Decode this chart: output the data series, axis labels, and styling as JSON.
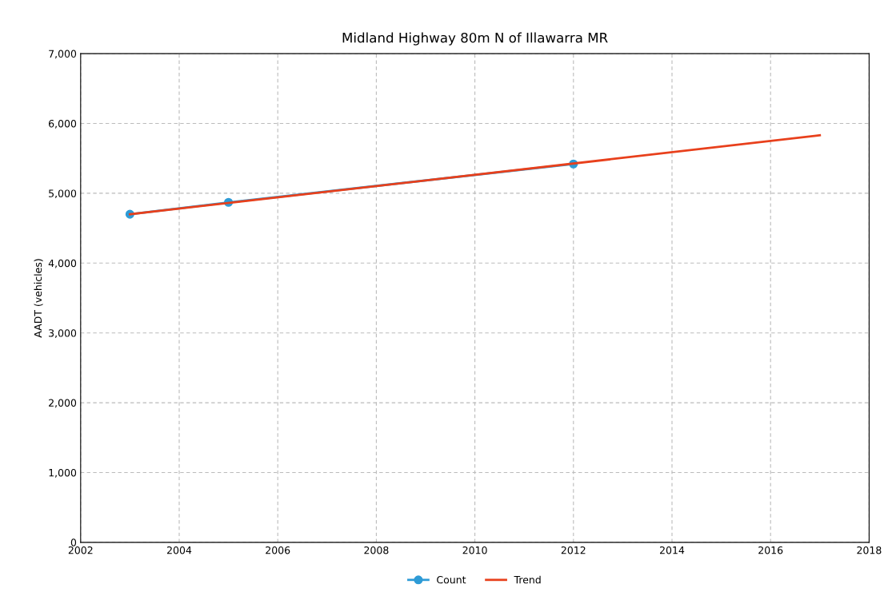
{
  "chart_data": {
    "type": "line",
    "title": "Midland Highway 80m N of Illawarra MR",
    "ylabel": "AADT (vehicles)",
    "series": [
      {
        "name": "Count",
        "color": "#2e9bd6",
        "x": [
          2003,
          2005,
          2012
        ],
        "values": [
          4700,
          4870,
          5420
        ],
        "marker": "circle"
      },
      {
        "name": "Trend",
        "color": "#e8401c",
        "x": [
          2003,
          2017
        ],
        "values": [
          4700,
          5830
        ],
        "marker": "none"
      }
    ],
    "xlim": [
      2002,
      2018
    ],
    "xticks": [
      2002,
      2004,
      2006,
      2008,
      2010,
      2012,
      2014,
      2016,
      2018
    ],
    "ylim": [
      0,
      7000
    ],
    "yticks": [
      {
        "value": 0,
        "label": "0"
      },
      {
        "value": 1000,
        "label": "1,000"
      },
      {
        "value": 2000,
        "label": "2,000"
      },
      {
        "value": 3000,
        "label": "3,000"
      },
      {
        "value": 4000,
        "label": "4,000"
      },
      {
        "value": 5000,
        "label": "5,000"
      },
      {
        "value": 6000,
        "label": "6,000"
      },
      {
        "value": 7000,
        "label": "7,000"
      }
    ],
    "grid": true,
    "legend": "bottom",
    "line_style": "solid"
  }
}
